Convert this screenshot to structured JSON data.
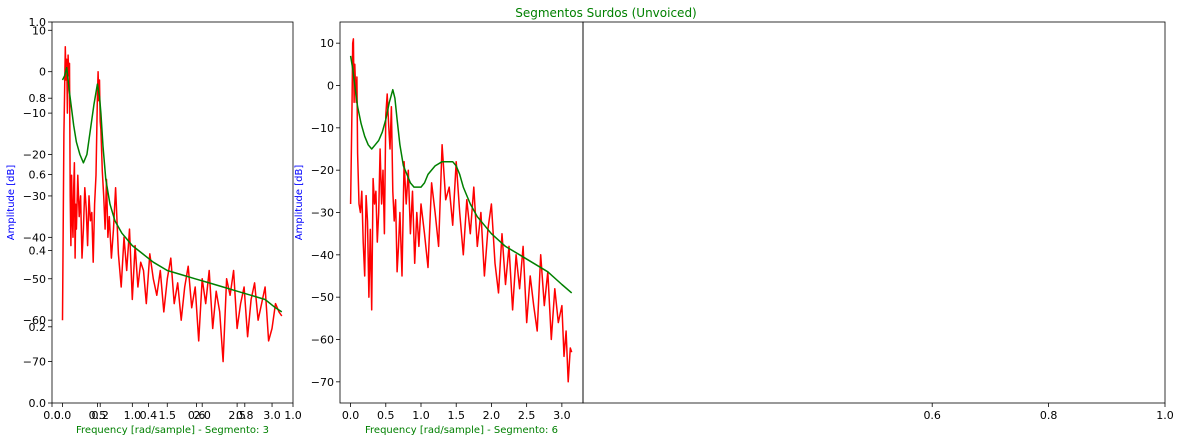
{
  "figure": {
    "title": "Segmentos Surdos (Unvoiced)",
    "title_color": "#008000",
    "xlabel_color": "#008000",
    "ylabel_color": "#0000ff"
  },
  "colors": {
    "spectrum": "#ff0000",
    "envelope": "#008000",
    "axis": "#000000",
    "background": "#ffffff"
  },
  "chart_data": [
    {
      "type": "line",
      "title": "",
      "xlabel": "",
      "ylabel": "",
      "xlim": [
        0.0,
        1.0
      ],
      "ylim": [
        0.0,
        1.0
      ],
      "xticks": [
        0.0,
        0.2,
        0.4,
        0.6,
        0.8,
        1.0
      ],
      "xtick_labels": [
        "0.0",
        "0.2",
        "0.4",
        "0.6",
        "0.8",
        "1.0"
      ],
      "yticks": [
        0.0,
        0.2,
        0.4,
        0.6,
        0.8,
        1.0
      ],
      "ytick_labels": [
        "0.0",
        "0.2",
        "0.4",
        "0.6",
        "0.8",
        "1.0"
      ],
      "series": []
    },
    {
      "type": "line",
      "title": "",
      "xlabel": "Frequency [rad/sample] - Segmento: 3",
      "ylabel": "Amplitude [dB]",
      "xlim": [
        -0.15,
        3.3
      ],
      "ylim": [
        -80,
        12
      ],
      "xticks": [
        0.0,
        0.5,
        1.0,
        1.5,
        2.0,
        2.5,
        3.0
      ],
      "xtick_labels": [
        "0.0",
        "0.5",
        "1.0",
        "1.5",
        "2.0",
        "2.5",
        "3.0"
      ],
      "yticks": [
        10,
        0,
        -10,
        -20,
        -30,
        -40,
        -50,
        -60,
        -70
      ],
      "ytick_labels": [
        "10",
        "0",
        "−10",
        "−20",
        "−30",
        "−40",
        "−50",
        "−60",
        "−70"
      ],
      "series": [
        {
          "kind": "spectrum",
          "x": [
            0.0,
            0.02,
            0.03,
            0.04,
            0.05,
            0.06,
            0.07,
            0.08,
            0.09,
            0.1,
            0.11,
            0.12,
            0.13,
            0.14,
            0.15,
            0.16,
            0.17,
            0.18,
            0.19,
            0.2,
            0.22,
            0.24,
            0.26,
            0.28,
            0.3,
            0.32,
            0.34,
            0.36,
            0.38,
            0.4,
            0.42,
            0.44,
            0.46,
            0.48,
            0.5,
            0.51,
            0.52,
            0.53,
            0.54,
            0.55,
            0.57,
            0.59,
            0.61,
            0.63,
            0.65,
            0.67,
            0.7,
            0.73,
            0.76,
            0.8,
            0.84,
            0.88,
            0.92,
            0.96,
            1.0,
            1.04,
            1.08,
            1.12,
            1.16,
            1.2,
            1.25,
            1.3,
            1.35,
            1.4,
            1.45,
            1.5,
            1.55,
            1.6,
            1.65,
            1.7,
            1.75,
            1.8,
            1.85,
            1.9,
            1.95,
            2.0,
            2.05,
            2.1,
            2.15,
            2.2,
            2.25,
            2.3,
            2.35,
            2.4,
            2.45,
            2.5,
            2.55,
            2.6,
            2.65,
            2.7,
            2.75,
            2.8,
            2.85,
            2.9,
            2.95,
            3.0,
            3.05,
            3.1,
            3.14
          ],
          "y": [
            -60,
            -15,
            -5,
            6,
            -2,
            3,
            -10,
            4,
            -1,
            2,
            -30,
            -42,
            -25,
            -35,
            -40,
            -28,
            -22,
            -45,
            -32,
            -38,
            -25,
            -35,
            -30,
            -45,
            -38,
            -28,
            -33,
            -42,
            -30,
            -36,
            -34,
            -46,
            -32,
            -25,
            -6,
            0,
            -7,
            -2,
            -12,
            -14,
            -24,
            -30,
            -38,
            -26,
            -40,
            -35,
            -45,
            -38,
            -28,
            -44,
            -52,
            -40,
            -48,
            -38,
            -55,
            -42,
            -52,
            -46,
            -48,
            -56,
            -44,
            -50,
            -54,
            -48,
            -58,
            -50,
            -45,
            -56,
            -51,
            -60,
            -52,
            -47,
            -57,
            -52,
            -65,
            -50,
            -56,
            -48,
            -62,
            -53,
            -58,
            -70,
            -50,
            -54,
            -48,
            -62,
            -56,
            -52,
            -64,
            -55,
            -51,
            -60,
            -56,
            -52,
            -65,
            -62,
            -56,
            -58,
            -59
          ]
        },
        {
          "kind": "envelope",
          "x": [
            0.0,
            0.03,
            0.06,
            0.08,
            0.1,
            0.13,
            0.16,
            0.2,
            0.25,
            0.3,
            0.35,
            0.4,
            0.45,
            0.5,
            0.53,
            0.55,
            0.58,
            0.62,
            0.68,
            0.75,
            0.85,
            1.0,
            1.15,
            1.3,
            1.5,
            1.7,
            1.9,
            2.1,
            2.3,
            2.5,
            2.7,
            2.9,
            3.05,
            3.14
          ],
          "y": [
            -2,
            -1,
            1,
            -2,
            -5,
            -9,
            -13,
            -17,
            -20,
            -22,
            -20,
            -14,
            -8,
            -3,
            -6,
            -10,
            -18,
            -26,
            -32,
            -36,
            -39,
            -42,
            -44,
            -46,
            -48,
            -49,
            -50,
            -51,
            -52,
            -53,
            -54,
            -55,
            -57,
            -58
          ]
        }
      ]
    },
    {
      "type": "line",
      "title": "",
      "xlabel": "Frequency [rad/sample] - Segmento: 6",
      "ylabel": "Amplitude [dB]",
      "xlim": [
        -0.15,
        3.3
      ],
      "ylim": [
        -75,
        15
      ],
      "xticks": [
        0.0,
        0.5,
        1.0,
        1.5,
        2.0,
        2.5,
        3.0
      ],
      "xtick_labels": [
        "0.0",
        "0.5",
        "1.0",
        "1.5",
        "2.0",
        "2.5",
        "3.0"
      ],
      "yticks": [
        10,
        0,
        -10,
        -20,
        -30,
        -40,
        -50,
        -60,
        -70
      ],
      "ytick_labels": [
        "10",
        "0",
        "−10",
        "−20",
        "−30",
        "−40",
        "−50",
        "−60",
        "−70"
      ],
      "series": [
        {
          "kind": "spectrum",
          "x": [
            0.0,
            0.02,
            0.03,
            0.04,
            0.05,
            0.06,
            0.07,
            0.08,
            0.09,
            0.1,
            0.12,
            0.14,
            0.16,
            0.18,
            0.2,
            0.22,
            0.24,
            0.26,
            0.28,
            0.3,
            0.32,
            0.34,
            0.36,
            0.38,
            0.4,
            0.42,
            0.44,
            0.46,
            0.48,
            0.5,
            0.52,
            0.54,
            0.56,
            0.58,
            0.6,
            0.62,
            0.64,
            0.66,
            0.68,
            0.7,
            0.73,
            0.76,
            0.79,
            0.82,
            0.85,
            0.88,
            0.91,
            0.94,
            0.97,
            1.0,
            1.05,
            1.1,
            1.15,
            1.2,
            1.25,
            1.3,
            1.35,
            1.4,
            1.45,
            1.5,
            1.55,
            1.6,
            1.65,
            1.7,
            1.75,
            1.8,
            1.85,
            1.9,
            1.95,
            2.0,
            2.05,
            2.1,
            2.15,
            2.2,
            2.25,
            2.3,
            2.35,
            2.4,
            2.45,
            2.5,
            2.55,
            2.6,
            2.65,
            2.7,
            2.75,
            2.8,
            2.85,
            2.9,
            2.95,
            3.0,
            3.03,
            3.06,
            3.09,
            3.12,
            3.14
          ],
          "y": [
            -28,
            -5,
            10,
            11,
            -4,
            5,
            0,
            -4,
            2,
            -16,
            -28,
            -30,
            -25,
            -37,
            -45,
            -26,
            -32,
            -50,
            -34,
            -53,
            -22,
            -28,
            -25,
            -37,
            -30,
            -15,
            -28,
            -20,
            -35,
            -7,
            -2,
            -9,
            -15,
            -5,
            -25,
            -32,
            -27,
            -44,
            -38,
            -30,
            -45,
            -18,
            -28,
            -20,
            -35,
            -25,
            -42,
            -30,
            -38,
            -28,
            -35,
            -43,
            -23,
            -30,
            -38,
            -14,
            -27,
            -24,
            -33,
            -18,
            -30,
            -40,
            -27,
            -35,
            -24,
            -38,
            -30,
            -45,
            -34,
            -28,
            -42,
            -49,
            -35,
            -47,
            -38,
            -53,
            -40,
            -48,
            -38,
            -56,
            -45,
            -52,
            -58,
            -40,
            -52,
            -44,
            -60,
            -48,
            -56,
            -52,
            -64,
            -58,
            -70,
            -62,
            -63
          ]
        },
        {
          "kind": "envelope",
          "x": [
            0.0,
            0.03,
            0.06,
            0.1,
            0.15,
            0.2,
            0.25,
            0.3,
            0.35,
            0.4,
            0.45,
            0.5,
            0.55,
            0.6,
            0.63,
            0.66,
            0.7,
            0.75,
            0.8,
            0.85,
            0.9,
            0.95,
            1.0,
            1.05,
            1.1,
            1.2,
            1.3,
            1.4,
            1.45,
            1.5,
            1.55,
            1.6,
            1.7,
            1.8,
            2.0,
            2.2,
            2.4,
            2.6,
            2.8,
            3.0,
            3.14
          ],
          "y": [
            7,
            4,
            0,
            -5,
            -9,
            -12,
            -14,
            -15,
            -14,
            -13,
            -11,
            -8,
            -4,
            -1,
            -3,
            -8,
            -14,
            -19,
            -21,
            -23,
            -24,
            -24,
            -24,
            -23,
            -21,
            -19,
            -18,
            -18,
            -18,
            -19,
            -21,
            -24,
            -28,
            -31,
            -35,
            -38,
            -40,
            -42,
            -44,
            -47,
            -49
          ]
        }
      ]
    },
    {
      "type": "line",
      "title": "",
      "xlabel": "",
      "ylabel": "",
      "xlim": [
        0.0,
        1.0
      ],
      "ylim": [
        0.0,
        1.0
      ],
      "xticks": [
        0.6,
        0.8,
        1.0
      ],
      "xtick_labels": [
        "0.6",
        "0.8",
        "1.0"
      ],
      "yticks": [],
      "ytick_labels": [],
      "series": []
    }
  ]
}
